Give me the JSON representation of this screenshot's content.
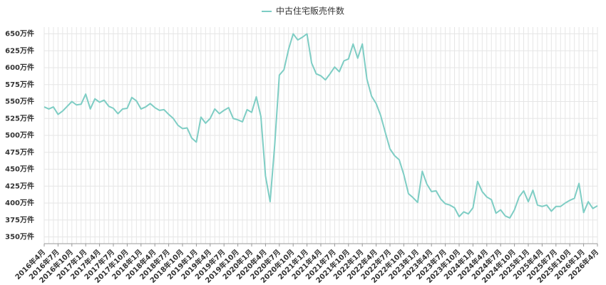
{
  "chart_data": {
    "type": "line",
    "categories": [
      "2016年4月",
      null,
      null,
      "2016年7月",
      null,
      null,
      "2016年10月",
      null,
      null,
      "2017年1月",
      null,
      null,
      "2017年4月",
      null,
      null,
      "2017年7月",
      null,
      null,
      "2017年10月",
      null,
      null,
      "2018年1月",
      null,
      null,
      "2018年4月",
      null,
      null,
      "2018年7月",
      null,
      null,
      "2018年10月",
      null,
      null,
      "2019年1月",
      null,
      null,
      "2019年4月",
      null,
      null,
      "2019年7月",
      null,
      null,
      "2019年10月",
      null,
      null,
      "2020年1月",
      null,
      null,
      "2020年4月",
      null,
      null,
      "2020年7月",
      null,
      null,
      "2020年10月",
      null,
      null,
      "2021年1月",
      null,
      null,
      "2021年4月",
      null,
      null,
      "2021年7月",
      null,
      null,
      "2021年10月",
      null,
      null,
      "2022年1月",
      null,
      null,
      "2022年4月",
      null,
      null,
      "2022年7月",
      null,
      null,
      "2022年10月",
      null,
      null,
      "2023年1月",
      null,
      null,
      "2023年4月",
      null,
      null,
      "2023年7月",
      null,
      null,
      "2023年10月",
      null,
      null,
      "2024年1月",
      null,
      null,
      "2024年4月",
      null,
      null,
      "2024年7月",
      null,
      null,
      "2024年10月",
      null,
      null,
      "2025年1月",
      null,
      null,
      "2025年4月",
      null,
      null,
      "2025年7月",
      null,
      null,
      "2025年10月",
      null,
      null,
      "2026年1月",
      null,
      null,
      "2026年4月"
    ],
    "series": [
      {
        "name": "中古住宅販売件数",
        "color": "#7ecdc4",
        "values": [
          542,
          539,
          542,
          531,
          536,
          543,
          550,
          545,
          546,
          561,
          539,
          554,
          549,
          552,
          543,
          540,
          532,
          539,
          540,
          556,
          551,
          539,
          542,
          547,
          541,
          537,
          538,
          531,
          525,
          515,
          510,
          511,
          496,
          490,
          527,
          518,
          525,
          539,
          532,
          537,
          541,
          525,
          523,
          520,
          538,
          534,
          557,
          528,
          440,
          402,
          486,
          589,
          597,
          627,
          650,
          641,
          645,
          650,
          607,
          591,
          588,
          582,
          591,
          601,
          594,
          610,
          613,
          635,
          614,
          635,
          583,
          558,
          547,
          529,
          504,
          480,
          470,
          464,
          442,
          414,
          408,
          401,
          447,
          428,
          417,
          418,
          406,
          399,
          397,
          393,
          380,
          387,
          384,
          393,
          432,
          417,
          409,
          405,
          385,
          390,
          381,
          378,
          390,
          409,
          418,
          402,
          419,
          397,
          395,
          397,
          388,
          395,
          395,
          400,
          404,
          407,
          429,
          386,
          402,
          392,
          396
        ]
      }
    ],
    "ylim": [
      340,
      660
    ],
    "yticks": [
      {
        "value": 350,
        "label": "350万件"
      },
      {
        "value": 375,
        "label": "375万件"
      },
      {
        "value": 400,
        "label": "400万件"
      },
      {
        "value": 425,
        "label": "425万件"
      },
      {
        "value": 450,
        "label": "450万件"
      },
      {
        "value": 475,
        "label": "475万件"
      },
      {
        "value": 500,
        "label": "500万件"
      },
      {
        "value": 525,
        "label": "525万件"
      },
      {
        "value": 550,
        "label": "550万件"
      },
      {
        "value": 575,
        "label": "575万件"
      },
      {
        "value": 600,
        "label": "600万件"
      },
      {
        "value": 625,
        "label": "625万件"
      },
      {
        "value": 650,
        "label": "650万件"
      }
    ],
    "grid": true,
    "legend": "top"
  }
}
